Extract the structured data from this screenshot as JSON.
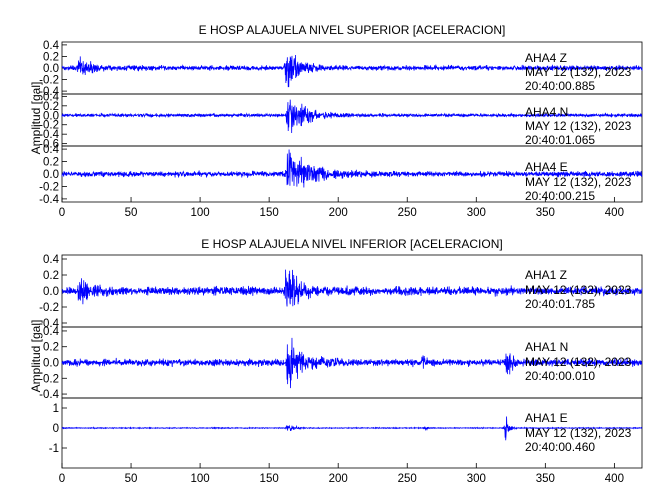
{
  "chart_data": [
    {
      "type": "line",
      "title": "E HOSP ALAJUELA NIVEL SUPERIOR [ACELERACION]",
      "ylabel": "Amplitud [gal]",
      "xlabel": "",
      "xlim": [
        0,
        420
      ],
      "x_ticks": [
        "0",
        "50",
        "100",
        "150",
        "200",
        "250",
        "300",
        "350",
        "400"
      ],
      "line_color": "#0000ff",
      "grid": false,
      "traces": [
        {
          "station": "AHA4   Z",
          "date": "MAY 12 (132), 2023",
          "time": "20:40:00.885",
          "ylim": [
            -0.45,
            0.45
          ],
          "y_ticks": [
            "0.4",
            "0.2",
            "0.0",
            "-0.2",
            "-0.4"
          ],
          "base_amplitude": 0.05,
          "events": [
            {
              "t": 12,
              "amp": 0.2,
              "decay": 8
            },
            {
              "t": 162,
              "amp": 0.42,
              "decay": 9
            }
          ]
        },
        {
          "station": "AHA4   N",
          "date": "MAY 12 (132), 2023",
          "time": "20:40:01.065",
          "ylim": [
            -0.65,
            0.45
          ],
          "y_ticks": [
            "0.4",
            "0.2",
            "0.0",
            "-0.2",
            "-0.4",
            "-0.6"
          ],
          "base_amplitude": 0.04,
          "events": [
            {
              "t": 163,
              "amp": 0.55,
              "decay": 12
            }
          ]
        },
        {
          "station": "AHA4   E",
          "date": "MAY 12 (132), 2023",
          "time": "20:40:00.215",
          "ylim": [
            -0.45,
            0.45
          ],
          "y_ticks": [
            "0.4",
            "0.2",
            "0.0",
            "-0.2",
            "-0.4"
          ],
          "base_amplitude": 0.05,
          "events": [
            {
              "t": 163,
              "amp": 0.44,
              "decay": 15
            }
          ]
        }
      ]
    },
    {
      "type": "line",
      "title": "E HOSP ALAJUELA NIVEL INFERIOR [ACELERACION]",
      "ylabel": "Amplitud [gal]",
      "xlabel": "",
      "xlim": [
        0,
        420
      ],
      "x_ticks": [
        "0",
        "50",
        "100",
        "150",
        "200",
        "250",
        "300",
        "350",
        "400"
      ],
      "line_color": "#0000ff",
      "grid": false,
      "traces": [
        {
          "station": "AHA1   Z",
          "date": "MAY 12 (132), 2023",
          "time": "20:40:01.785",
          "ylim": [
            -0.45,
            0.45
          ],
          "y_ticks": [
            "0.4",
            "0.2",
            "0.0",
            "-0.2",
            "-0.4"
          ],
          "base_amplitude": 0.06,
          "events": [
            {
              "t": 12,
              "amp": 0.18,
              "decay": 8
            },
            {
              "t": 162,
              "amp": 0.43,
              "decay": 8
            }
          ]
        },
        {
          "station": "AHA1   N",
          "date": "MAY 12 (132), 2023",
          "time": "20:40:00.010",
          "ylim": [
            -0.45,
            0.45
          ],
          "y_ticks": [
            "0.4",
            "0.2",
            "0.0",
            "-0.2",
            "-0.4"
          ],
          "base_amplitude": 0.05,
          "events": [
            {
              "t": 163,
              "amp": 0.42,
              "decay": 10
            },
            {
              "t": 261,
              "amp": 0.12,
              "decay": 1.5
            },
            {
              "t": 322,
              "amp": 0.45,
              "decay": 2
            }
          ]
        },
        {
          "station": "AHA1   E",
          "date": "MAY 12 (132), 2023",
          "time": "20:40:00.460",
          "ylim": [
            -2,
            1.5
          ],
          "y_ticks": [
            "1",
            "0",
            "-1"
          ],
          "base_amplitude": 0.025,
          "events": [
            {
              "t": 163,
              "amp": 0.35,
              "decay": 4
            },
            {
              "t": 263,
              "amp": 0.25,
              "decay": 1.2
            },
            {
              "t": 321,
              "amp": 1.25,
              "decay": 1.8
            }
          ]
        }
      ]
    }
  ]
}
